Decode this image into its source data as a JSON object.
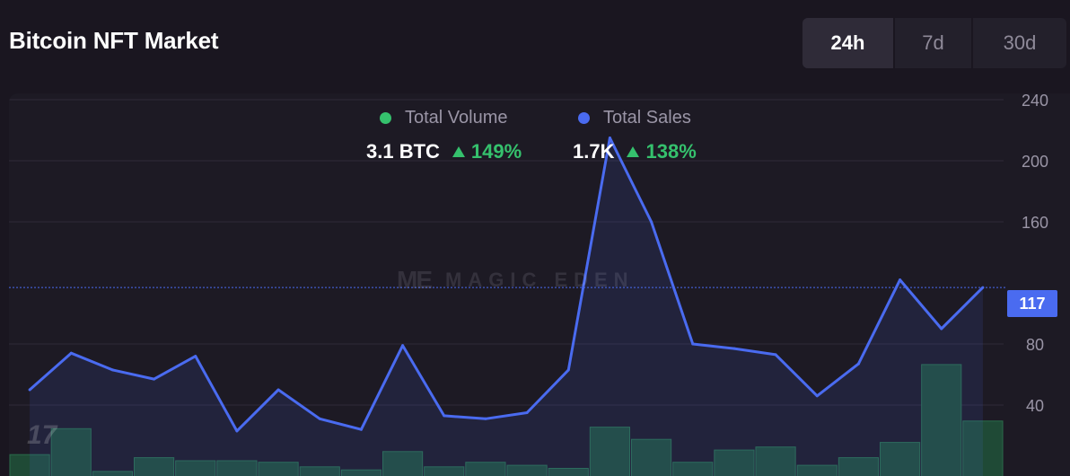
{
  "title": "Bitcoin NFT Market",
  "tabs": [
    {
      "label": "24h",
      "active": true
    },
    {
      "label": "7d",
      "active": false
    },
    {
      "label": "30d",
      "active": false
    }
  ],
  "legend": {
    "volume": {
      "label": "Total Volume",
      "color": "#35c16d",
      "value": "3.1 BTC",
      "change": "149%"
    },
    "sales": {
      "label": "Total Sales",
      "color": "#4a6bf0",
      "value": "1.7K",
      "change": "138%"
    }
  },
  "watermark": {
    "logo": "ME",
    "text": "MAGIC EDEN"
  },
  "current_value": "117",
  "chart_data": {
    "type": "line",
    "y_ticks": [
      "240",
      "200",
      "160",
      "80",
      "40"
    ],
    "ylim": [
      0,
      240
    ],
    "series": [
      {
        "name": "Total Sales",
        "type": "line",
        "color": "#4a6bf0",
        "values": [
          50,
          74,
          63,
          57,
          72,
          23,
          50,
          31,
          24,
          79,
          33,
          31,
          35,
          63,
          215,
          160,
          80,
          77,
          73,
          46,
          67,
          122,
          90,
          117
        ]
      },
      {
        "name": "Total Volume",
        "type": "bar",
        "color": "#35c16d",
        "values": [
          14,
          31,
          3,
          12,
          10,
          10,
          9,
          6,
          4,
          16,
          6,
          9,
          7,
          5,
          32,
          24,
          9,
          17,
          19,
          7,
          12,
          22,
          73,
          36
        ]
      }
    ],
    "grid": true,
    "current_marker": 117
  }
}
